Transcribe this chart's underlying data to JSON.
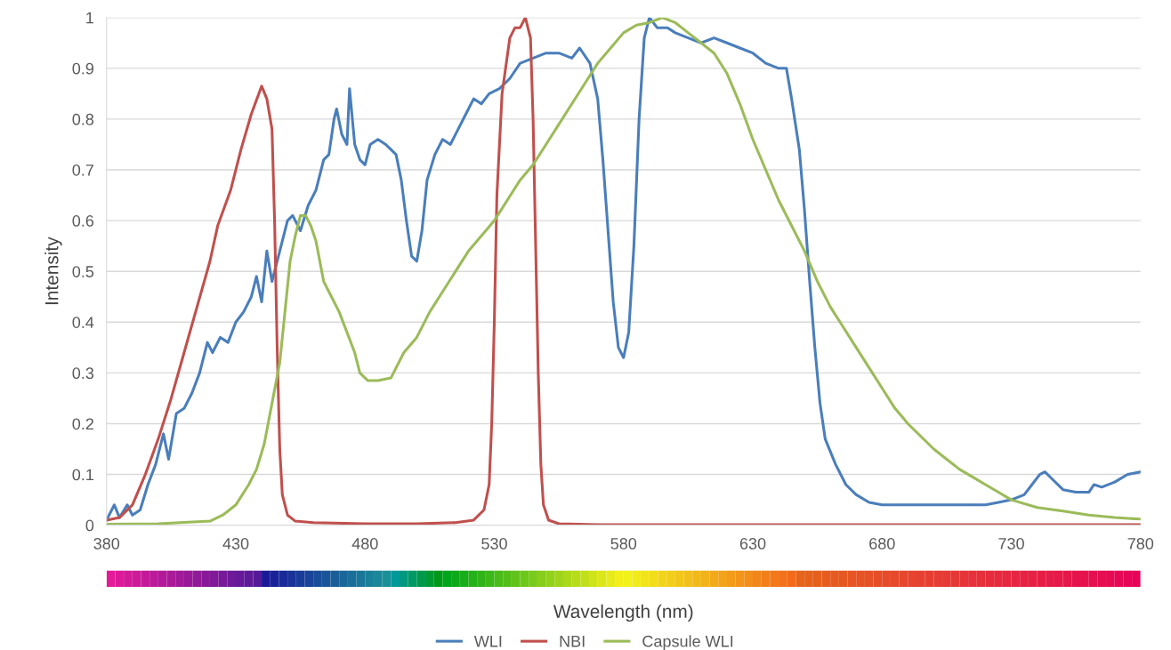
{
  "chart_data": {
    "type": "line",
    "xlabel": "Wavelength (nm)",
    "ylabel": "Intensity",
    "xlim": [
      380,
      780
    ],
    "xticks": [
      380,
      430,
      480,
      530,
      580,
      630,
      680,
      730,
      780
    ],
    "ylim": [
      0,
      1
    ],
    "yticks": [
      0,
      0.1,
      0.2,
      0.3,
      0.4,
      0.5,
      0.6,
      0.7,
      0.8,
      0.9,
      1
    ],
    "grid": "y",
    "legend": "bottom",
    "marker": "none",
    "line_style": "solid",
    "series": [
      {
        "name": "WLI",
        "color": "#4a7ebb",
        "x": [
          380,
          383,
          385,
          388,
          390,
          393,
          396,
          399,
          402,
          404,
          407,
          410,
          413,
          416,
          419,
          421,
          424,
          427,
          430,
          433,
          436,
          438,
          440,
          442,
          444,
          447,
          450,
          452,
          455,
          458,
          461,
          464,
          466,
          468,
          469,
          471,
          473,
          474,
          476,
          478,
          480,
          482,
          485,
          488,
          490,
          492,
          494,
          496,
          498,
          500,
          502,
          504,
          507,
          510,
          513,
          516,
          519,
          522,
          525,
          528,
          532,
          536,
          540,
          545,
          550,
          555,
          560,
          563,
          567,
          570,
          572,
          574,
          576,
          578,
          580,
          582,
          584,
          586,
          588,
          590,
          593,
          597,
          600,
          605,
          610,
          615,
          620,
          625,
          630,
          635,
          640,
          643,
          645,
          648,
          650,
          652,
          654,
          656,
          658,
          662,
          666,
          670,
          675,
          680,
          700,
          720,
          725,
          730,
          735,
          738,
          741,
          743,
          746,
          750,
          755,
          760,
          762,
          765,
          770,
          775,
          780
        ],
        "values": [
          0.01,
          0.04,
          0.015,
          0.04,
          0.02,
          0.03,
          0.08,
          0.12,
          0.18,
          0.13,
          0.22,
          0.23,
          0.26,
          0.3,
          0.36,
          0.34,
          0.37,
          0.36,
          0.4,
          0.42,
          0.45,
          0.49,
          0.44,
          0.54,
          0.48,
          0.54,
          0.6,
          0.61,
          0.58,
          0.63,
          0.66,
          0.72,
          0.73,
          0.8,
          0.82,
          0.77,
          0.75,
          0.86,
          0.75,
          0.72,
          0.71,
          0.75,
          0.76,
          0.75,
          0.74,
          0.73,
          0.68,
          0.6,
          0.53,
          0.52,
          0.58,
          0.68,
          0.73,
          0.76,
          0.75,
          0.78,
          0.81,
          0.84,
          0.83,
          0.85,
          0.86,
          0.88,
          0.91,
          0.92,
          0.93,
          0.93,
          0.92,
          0.94,
          0.91,
          0.84,
          0.72,
          0.58,
          0.44,
          0.35,
          0.33,
          0.38,
          0.55,
          0.8,
          0.96,
          1.0,
          0.98,
          0.98,
          0.97,
          0.96,
          0.95,
          0.96,
          0.95,
          0.94,
          0.93,
          0.91,
          0.9,
          0.9,
          0.84,
          0.74,
          0.62,
          0.48,
          0.35,
          0.24,
          0.17,
          0.12,
          0.08,
          0.06,
          0.045,
          0.04,
          0.04,
          0.04,
          0.045,
          0.05,
          0.06,
          0.08,
          0.1,
          0.105,
          0.09,
          0.07,
          0.065,
          0.065,
          0.08,
          0.075,
          0.085,
          0.1,
          0.105
        ]
      },
      {
        "name": "NBI",
        "color": "#c0504d",
        "x": [
          380,
          385,
          390,
          395,
          400,
          405,
          410,
          415,
          420,
          423,
          428,
          432,
          436,
          440,
          442,
          444,
          445,
          446,
          447,
          448,
          450,
          453,
          460,
          480,
          500,
          515,
          522,
          526,
          528,
          529,
          530,
          531,
          533,
          536,
          538,
          540,
          542,
          544,
          545,
          546,
          547,
          548,
          549,
          551,
          555,
          570,
          780
        ],
        "values": [
          0.01,
          0.015,
          0.04,
          0.1,
          0.17,
          0.25,
          0.34,
          0.43,
          0.52,
          0.59,
          0.66,
          0.74,
          0.81,
          0.865,
          0.84,
          0.78,
          0.6,
          0.35,
          0.15,
          0.06,
          0.02,
          0.008,
          0.005,
          0.003,
          0.003,
          0.005,
          0.01,
          0.03,
          0.08,
          0.2,
          0.4,
          0.65,
          0.85,
          0.96,
          0.98,
          0.98,
          1.0,
          0.96,
          0.8,
          0.55,
          0.3,
          0.12,
          0.04,
          0.01,
          0.003,
          0.001,
          0.001
        ]
      },
      {
        "name": "Capsule WLI",
        "color": "#9bbb59",
        "x": [
          380,
          400,
          420,
          425,
          430,
          435,
          438,
          441,
          444,
          447,
          449,
          451,
          453,
          455,
          457,
          459,
          461,
          464,
          467,
          470,
          473,
          476,
          478,
          481,
          485,
          490,
          492,
          495,
          500,
          505,
          510,
          515,
          520,
          525,
          530,
          535,
          540,
          545,
          550,
          555,
          560,
          565,
          570,
          575,
          580,
          585,
          590,
          595,
          600,
          605,
          610,
          615,
          620,
          625,
          630,
          635,
          640,
          645,
          650,
          655,
          660,
          665,
          670,
          675,
          680,
          685,
          690,
          695,
          700,
          705,
          710,
          715,
          720,
          725,
          730,
          740,
          750,
          760,
          770,
          780
        ],
        "values": [
          0.002,
          0.003,
          0.008,
          0.02,
          0.04,
          0.08,
          0.11,
          0.16,
          0.24,
          0.32,
          0.42,
          0.52,
          0.57,
          0.61,
          0.61,
          0.59,
          0.56,
          0.48,
          0.45,
          0.42,
          0.38,
          0.34,
          0.3,
          0.285,
          0.285,
          0.29,
          0.31,
          0.34,
          0.37,
          0.42,
          0.46,
          0.5,
          0.54,
          0.57,
          0.6,
          0.64,
          0.68,
          0.71,
          0.75,
          0.79,
          0.83,
          0.87,
          0.91,
          0.94,
          0.97,
          0.985,
          0.99,
          1.0,
          0.99,
          0.97,
          0.95,
          0.93,
          0.89,
          0.83,
          0.76,
          0.7,
          0.64,
          0.59,
          0.54,
          0.48,
          0.43,
          0.39,
          0.35,
          0.31,
          0.27,
          0.23,
          0.2,
          0.175,
          0.15,
          0.13,
          0.11,
          0.095,
          0.08,
          0.065,
          0.05,
          0.035,
          0.028,
          0.02,
          0.015,
          0.012
        ]
      }
    ]
  }
}
